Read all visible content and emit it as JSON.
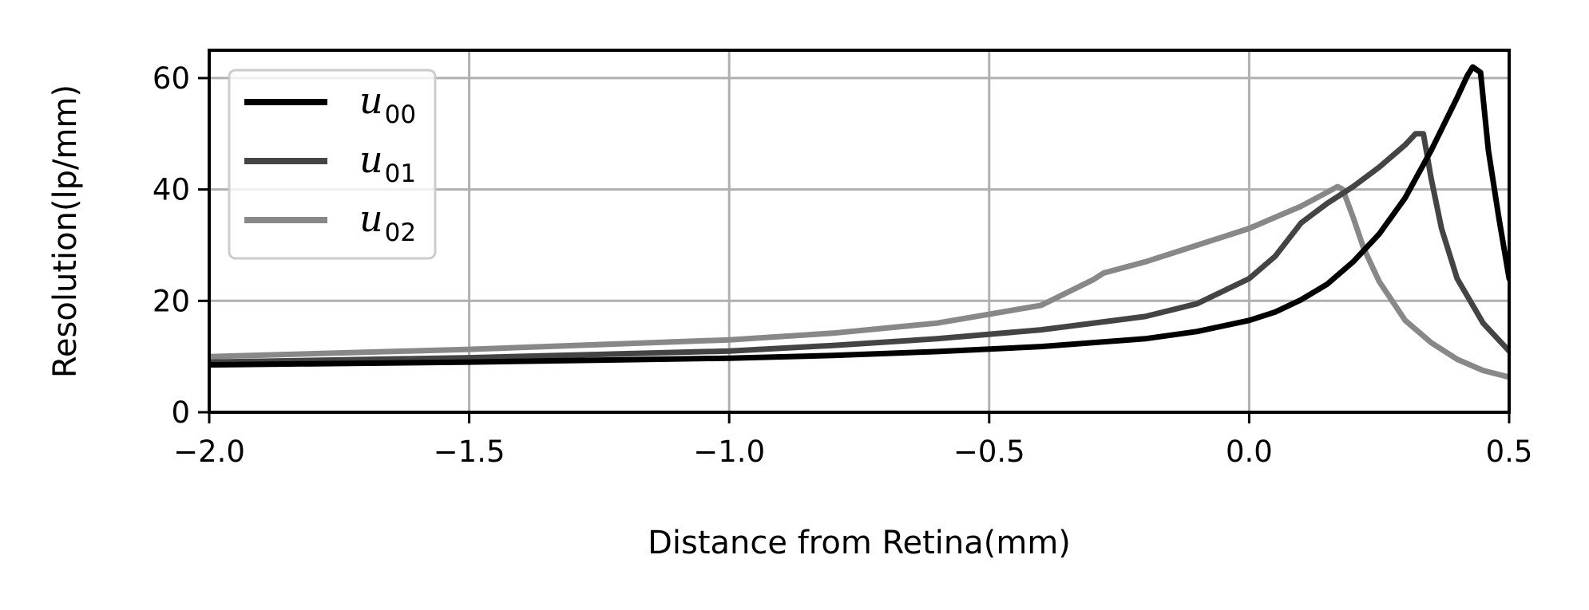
{
  "chart_data": {
    "type": "line",
    "title": "",
    "xlabel": "Distance from Retina(mm)",
    "ylabel": "Resolution(lp/mm)",
    "xlim": [
      -2.0,
      0.5
    ],
    "ylim": [
      0,
      65
    ],
    "xticks": [
      -2.0,
      -1.5,
      -1.0,
      -0.5,
      0.0,
      0.5
    ],
    "xtick_labels": [
      "−2.0",
      "−1.5",
      "−1.0",
      "−0.5",
      "0.0",
      "0.5"
    ],
    "yticks": [
      0,
      20,
      40,
      60
    ],
    "ytick_labels": [
      "0",
      "20",
      "40",
      "60"
    ],
    "grid": true,
    "legend_position": "top-left",
    "series": [
      {
        "name": "u00",
        "label_base": "u",
        "label_sub": "00",
        "color": "#000000",
        "x": [
          -2.0,
          -1.5,
          -1.0,
          -0.8,
          -0.6,
          -0.4,
          -0.2,
          -0.1,
          0.0,
          0.05,
          0.1,
          0.15,
          0.2,
          0.25,
          0.3,
          0.35,
          0.4,
          0.42,
          0.43,
          0.445,
          0.46,
          0.48,
          0.5
        ],
        "y": [
          8.5,
          9.0,
          9.7,
          10.2,
          10.9,
          11.8,
          13.2,
          14.5,
          16.5,
          18.0,
          20.2,
          23.0,
          27.0,
          32.0,
          38.5,
          47.0,
          56.5,
          60.5,
          62.0,
          61.0,
          47.0,
          35.0,
          24.0
        ]
      },
      {
        "name": "u01",
        "label_base": "u",
        "label_sub": "01",
        "color": "#444444",
        "x": [
          -2.0,
          -1.5,
          -1.0,
          -0.8,
          -0.6,
          -0.4,
          -0.2,
          -0.1,
          0.0,
          0.05,
          0.1,
          0.15,
          0.2,
          0.25,
          0.3,
          0.32,
          0.335,
          0.35,
          0.37,
          0.4,
          0.45,
          0.5
        ],
        "y": [
          9.0,
          9.8,
          11.0,
          12.0,
          13.2,
          14.8,
          17.2,
          19.5,
          24.0,
          28.0,
          34.0,
          37.5,
          40.5,
          44.0,
          48.0,
          50.0,
          50.0,
          42.0,
          33.0,
          24.0,
          16.0,
          11.0
        ]
      },
      {
        "name": "u02",
        "label_base": "u",
        "label_sub": "02",
        "color": "#888888",
        "x": [
          -2.0,
          -1.5,
          -1.0,
          -0.8,
          -0.6,
          -0.4,
          -0.3,
          -0.28,
          -0.2,
          -0.1,
          0.0,
          0.05,
          0.1,
          0.15,
          0.17,
          0.18,
          0.2,
          0.22,
          0.25,
          0.3,
          0.35,
          0.4,
          0.45,
          0.5
        ],
        "y": [
          10.0,
          11.3,
          13.0,
          14.2,
          16.0,
          19.2,
          23.8,
          25.0,
          27.0,
          30.0,
          33.0,
          35.0,
          37.0,
          39.5,
          40.5,
          40.0,
          35.0,
          29.5,
          23.5,
          16.5,
          12.5,
          9.5,
          7.5,
          6.3
        ]
      }
    ]
  }
}
